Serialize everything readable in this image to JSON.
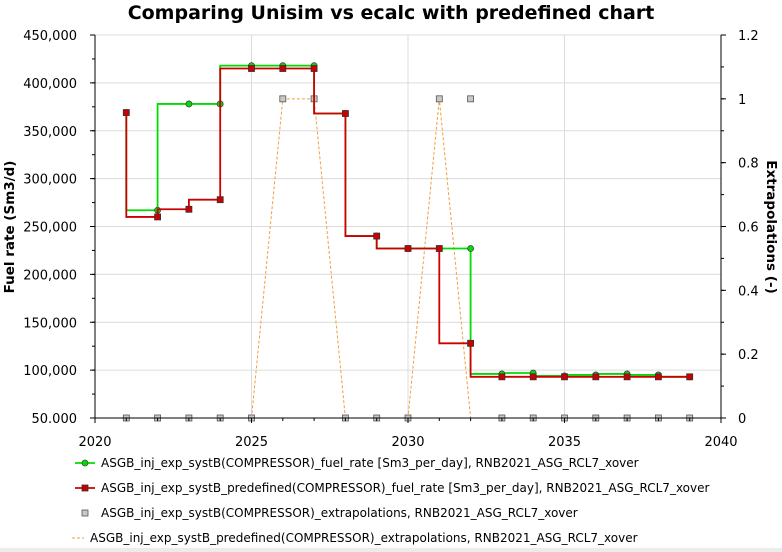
{
  "chart_data": {
    "type": "line",
    "title": "Comparing Unisim vs ecalc with predefined chart",
    "xlabel": "",
    "ylabel": "Fuel rate (Sm3/d)",
    "y2label": "Extrapolations (-)",
    "xlim": [
      2020,
      2040
    ],
    "ylim": [
      50000,
      450000
    ],
    "y2lim": [
      0,
      1.2
    ],
    "x_ticks": [
      "2020",
      "2025",
      "2030",
      "2035",
      "2040"
    ],
    "y_ticks": [
      "50.000",
      "100,000",
      "150,000",
      "200,000",
      "250,000",
      "300,000",
      "350,000",
      "400,000",
      "450,000"
    ],
    "y2_ticks": [
      "0",
      "0.2",
      "0.4",
      "0.6",
      "0.8",
      "1",
      "1.2"
    ],
    "grid": true,
    "legend_position": "bottom",
    "series": [
      {
        "name": "ASGB_inj_exp_systB(COMPRESSOR)_fuel_rate [Sm3_per_day], RNB2021_ASG_RCL7_xover",
        "axis": "left",
        "style": "step",
        "color": "#00dd00",
        "marker": "circle",
        "x": [
          2021,
          2022,
          2023,
          2024,
          2025,
          2026,
          2027,
          2028,
          2029,
          2030,
          2031,
          2032,
          2033,
          2034,
          2035,
          2036,
          2037,
          2038,
          2039
        ],
        "y": [
          369000,
          267000,
          378000,
          378000,
          418000,
          418000,
          418000,
          368000,
          240000,
          227000,
          227000,
          227000,
          96000,
          97000,
          94000,
          95000,
          96000,
          95000,
          93000
        ]
      },
      {
        "name": "ASGB_inj_exp_systB_predefined(COMPRESSOR)_fuel_rate [Sm3_per_day], RNB2021_ASG_RCL7_xover",
        "axis": "left",
        "style": "step",
        "color": "#cc0000",
        "marker": "square",
        "x": [
          2021,
          2022,
          2023,
          2024,
          2025,
          2026,
          2027,
          2028,
          2029,
          2030,
          2031,
          2032,
          2033,
          2034,
          2035,
          2036,
          2037,
          2038,
          2039
        ],
        "y": [
          369000,
          260000,
          268000,
          278000,
          415000,
          415000,
          415000,
          368000,
          240000,
          227000,
          227000,
          128000,
          93000,
          93000,
          93000,
          93000,
          93000,
          93000,
          93000
        ]
      },
      {
        "name": "ASGB_inj_exp_systB(COMPRESSOR)_extrapolations, RNB2021_ASG_RCL7_xover",
        "axis": "right",
        "style": "markers",
        "color": "#c8c8c8",
        "marker": "square",
        "x": [
          2021,
          2022,
          2023,
          2024,
          2025,
          2026,
          2027,
          2028,
          2029,
          2030,
          2031,
          2032,
          2033,
          2034,
          2035,
          2036,
          2037,
          2038,
          2039
        ],
        "y": [
          0,
          0,
          0,
          0,
          0,
          1,
          1,
          0,
          0,
          0,
          1,
          1,
          0,
          0,
          0,
          0,
          0,
          0,
          0
        ]
      },
      {
        "name": "ASGB_inj_exp_systB_predefined(COMPRESSOR)_extrapolations, RNB2021_ASG_RCL7_xover",
        "axis": "right",
        "style": "dashed",
        "color": "#f0a040",
        "marker": "none",
        "x": [
          2021,
          2022,
          2023,
          2024,
          2025,
          2026,
          2027,
          2028,
          2029,
          2030,
          2031,
          2032,
          2033,
          2034,
          2035,
          2036,
          2037,
          2038,
          2039
        ],
        "y": [
          0,
          0,
          0,
          0,
          0,
          1,
          1,
          0,
          0,
          0,
          1,
          0,
          0,
          0,
          0,
          0,
          0,
          0,
          0
        ]
      }
    ]
  }
}
